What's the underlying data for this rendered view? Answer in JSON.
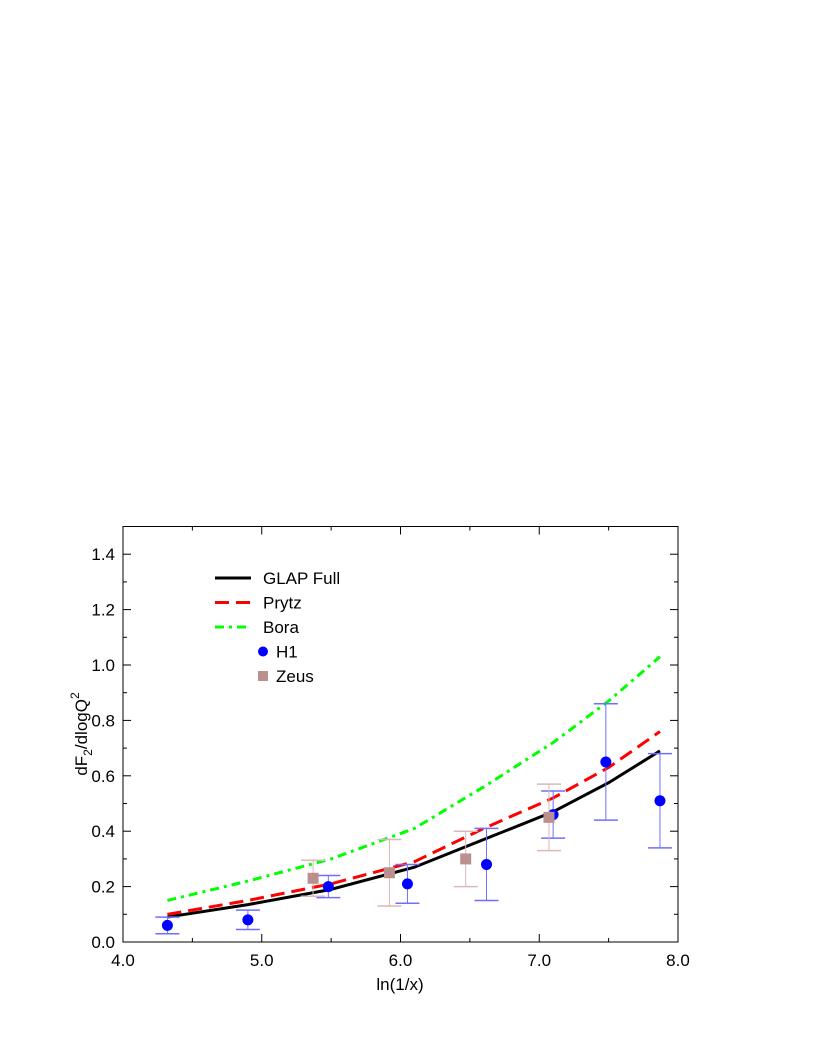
{
  "chart_data": {
    "type": "line",
    "title": "",
    "xlabel": "ln(1/x)",
    "ylabel_main": "dF",
    "ylabel_sub": "2",
    "ylabel_mid": "/dlogQ",
    "ylabel_sup": "2",
    "xlim": [
      4.0,
      8.0
    ],
    "ylim": [
      0.0,
      1.5
    ],
    "xticks": [
      "4.0",
      "5.0",
      "6.0",
      "7.0",
      "8.0"
    ],
    "yticks": [
      "0.0",
      "0.2",
      "0.4",
      "0.6",
      "0.8",
      "1.0",
      "1.2",
      "1.4"
    ],
    "legend_position": "top-left",
    "series": [
      {
        "name": "GLAP Full",
        "kind": "line",
        "color": "#000000",
        "style": "solid",
        "x": [
          4.32,
          4.9,
          5.5,
          6.1,
          6.6,
          7.1,
          7.5,
          7.87
        ],
        "y": [
          0.09,
          0.135,
          0.19,
          0.27,
          0.37,
          0.47,
          0.575,
          0.69
        ]
      },
      {
        "name": "Prytz",
        "kind": "line",
        "color": "#ff0000",
        "style": "dashed",
        "x": [
          4.32,
          4.9,
          5.5,
          6.1,
          6.6,
          7.1,
          7.5,
          7.87
        ],
        "y": [
          0.1,
          0.15,
          0.21,
          0.29,
          0.41,
          0.52,
          0.63,
          0.76
        ]
      },
      {
        "name": "Bora",
        "kind": "line",
        "color": "#00ff00",
        "style": "dashdot",
        "x": [
          4.32,
          4.9,
          5.5,
          6.1,
          6.6,
          7.1,
          7.5,
          7.87
        ],
        "y": [
          0.15,
          0.22,
          0.3,
          0.41,
          0.56,
          0.72,
          0.87,
          1.03
        ]
      },
      {
        "name": "H1",
        "kind": "points",
        "marker": "circle",
        "color": "#0000ff",
        "x": [
          4.32,
          4.9,
          5.48,
          6.05,
          6.62,
          7.1,
          7.48,
          7.87
        ],
        "y": [
          0.06,
          0.08,
          0.2,
          0.21,
          0.28,
          0.46,
          0.65,
          0.51
        ],
        "ylow": [
          0.03,
          0.045,
          0.16,
          0.14,
          0.15,
          0.375,
          0.44,
          0.34
        ],
        "yhigh": [
          0.09,
          0.115,
          0.24,
          0.28,
          0.41,
          0.545,
          0.86,
          0.68
        ]
      },
      {
        "name": "Zeus",
        "kind": "points",
        "marker": "square",
        "color": "#bc8f8f",
        "x": [
          5.37,
          5.92,
          6.47,
          7.07
        ],
        "y": [
          0.23,
          0.25,
          0.3,
          0.45
        ],
        "ylow": [
          0.165,
          0.13,
          0.2,
          0.33
        ],
        "yhigh": [
          0.295,
          0.37,
          0.4,
          0.57
        ]
      }
    ]
  }
}
